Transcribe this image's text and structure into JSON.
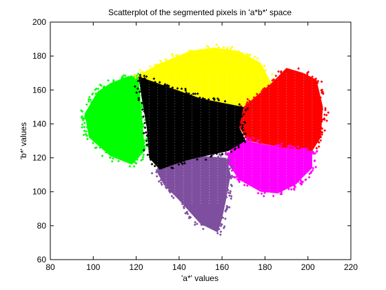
{
  "chart_data": {
    "type": "scatter",
    "title": "Scatterplot of the segmented pixels in 'a*b*' space",
    "xlabel": "'a*' values",
    "ylabel": "'b*' values",
    "xlim": [
      80,
      220
    ],
    "ylim": [
      60,
      200
    ],
    "xticks": [
      80,
      100,
      120,
      140,
      160,
      180,
      200,
      220
    ],
    "yticks": [
      60,
      80,
      100,
      120,
      140,
      160,
      180,
      200
    ],
    "grid": false,
    "legend": "none",
    "cluster_center": [
      170,
      136
    ],
    "series": [
      {
        "color": "#00ff00",
        "region": [
          [
            96,
            146
          ],
          [
            102,
            159
          ],
          [
            108,
            164
          ],
          [
            116,
            168
          ],
          [
            121,
            168
          ],
          [
            123,
            140
          ],
          [
            124,
            124
          ],
          [
            118,
            116
          ],
          [
            108,
            121
          ],
          [
            98,
            132
          ]
        ]
      },
      {
        "color": "#ffff00",
        "region": [
          [
            120,
            168
          ],
          [
            130,
            175
          ],
          [
            145,
            183
          ],
          [
            156,
            185
          ],
          [
            168,
            183
          ],
          [
            178,
            176
          ],
          [
            183,
            164
          ],
          [
            170,
            150
          ],
          [
            150,
            155
          ],
          [
            128,
            164
          ]
        ]
      },
      {
        "color": "#ff0000",
        "region": [
          [
            170,
            150
          ],
          [
            183,
            164
          ],
          [
            190,
            173
          ],
          [
            198,
            170
          ],
          [
            204,
            166
          ],
          [
            207,
            150
          ],
          [
            206,
            132
          ],
          [
            202,
            124
          ],
          [
            188,
            126
          ],
          [
            172,
            130
          ],
          [
            168,
            138
          ]
        ]
      },
      {
        "color": "#ff00ff",
        "region": [
          [
            171,
            130
          ],
          [
            188,
            126
          ],
          [
            202,
            124
          ],
          [
            202,
            114
          ],
          [
            194,
            104
          ],
          [
            186,
            99
          ],
          [
            178,
            100
          ],
          [
            168,
            107
          ],
          [
            162,
            118
          ],
          [
            164,
            125
          ]
        ]
      },
      {
        "color": "#7f4f9f",
        "region": [
          [
            129,
            113
          ],
          [
            142,
            118
          ],
          [
            152,
            121
          ],
          [
            162,
            120
          ],
          [
            164,
            110
          ],
          [
            162,
            96
          ],
          [
            160,
            84
          ],
          [
            158,
            76
          ],
          [
            150,
            81
          ],
          [
            140,
            95
          ],
          [
            133,
            104
          ]
        ]
      },
      {
        "color": "#000000",
        "region": [
          [
            121,
            168
          ],
          [
            130,
            164
          ],
          [
            150,
            155
          ],
          [
            170,
            150
          ],
          [
            168,
            138
          ],
          [
            171,
            130
          ],
          [
            163,
            124
          ],
          [
            152,
            121
          ],
          [
            142,
            118
          ],
          [
            131,
            113
          ],
          [
            126,
            120
          ],
          [
            125,
            137
          ]
        ]
      }
    ]
  }
}
